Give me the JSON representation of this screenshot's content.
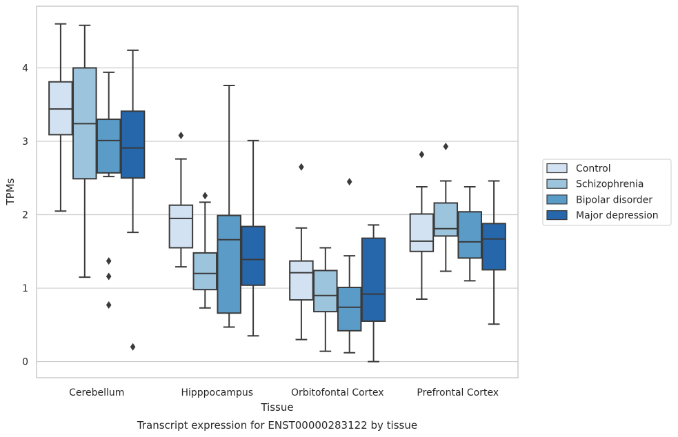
{
  "chart_data": {
    "type": "box",
    "title": "",
    "caption": "Transcript expression for ENST00000283122 by tissue",
    "xlabel": "Tissue",
    "ylabel": "TPMs",
    "ylim": [
      -0.22,
      4.84
    ],
    "yticks": [
      0,
      1,
      2,
      3,
      4
    ],
    "grid": "horizontal",
    "legend_position": "right",
    "categories": [
      "Cerebellum",
      "Hipppocampus",
      "Orbitofontal Cortex",
      "Prefrontal Cortex"
    ],
    "series": [
      {
        "name": "Control",
        "color": "#d2e2f2",
        "boxes": [
          {
            "whislo": 2.05,
            "q1": 3.09,
            "med": 3.44,
            "q3": 3.81,
            "whishi": 4.6,
            "fliers": []
          },
          {
            "whislo": 1.29,
            "q1": 1.55,
            "med": 1.95,
            "q3": 2.13,
            "whishi": 2.76,
            "fliers": [
              3.08
            ]
          },
          {
            "whislo": 0.3,
            "q1": 0.84,
            "med": 1.21,
            "q3": 1.37,
            "whishi": 1.82,
            "fliers": [
              2.65
            ]
          },
          {
            "whislo": 0.85,
            "q1": 1.5,
            "med": 1.64,
            "q3": 2.01,
            "whishi": 2.38,
            "fliers": [
              2.82
            ]
          }
        ]
      },
      {
        "name": "Schizophrenia",
        "color": "#9cc4dd",
        "boxes": [
          {
            "whislo": 1.15,
            "q1": 2.49,
            "med": 3.24,
            "q3": 4.0,
            "whishi": 4.58,
            "fliers": []
          },
          {
            "whislo": 0.73,
            "q1": 0.98,
            "med": 1.2,
            "q3": 1.48,
            "whishi": 2.17,
            "fliers": [
              2.26
            ]
          },
          {
            "whislo": 0.14,
            "q1": 0.68,
            "med": 0.9,
            "q3": 1.24,
            "whishi": 1.55,
            "fliers": []
          },
          {
            "whislo": 1.23,
            "q1": 1.71,
            "med": 1.81,
            "q3": 2.16,
            "whishi": 2.46,
            "fliers": [
              2.93
            ]
          }
        ]
      },
      {
        "name": "Bipolar disorder",
        "color": "#5a9bc8",
        "boxes": [
          {
            "whislo": 2.52,
            "q1": 2.57,
            "med": 3.01,
            "q3": 3.3,
            "whishi": 3.94,
            "fliers": [
              1.37,
              1.16,
              0.77
            ]
          },
          {
            "whislo": 0.47,
            "q1": 0.66,
            "med": 1.66,
            "q3": 1.99,
            "whishi": 3.76,
            "fliers": []
          },
          {
            "whislo": 0.12,
            "q1": 0.42,
            "med": 0.74,
            "q3": 1.01,
            "whishi": 1.44,
            "fliers": [
              2.45
            ]
          },
          {
            "whislo": 1.1,
            "q1": 1.41,
            "med": 1.63,
            "q3": 2.04,
            "whishi": 2.38,
            "fliers": []
          }
        ]
      },
      {
        "name": "Major depression",
        "color": "#2666ab",
        "boxes": [
          {
            "whislo": 1.76,
            "q1": 2.5,
            "med": 2.91,
            "q3": 3.41,
            "whishi": 4.24,
            "fliers": [
              0.2
            ]
          },
          {
            "whislo": 0.35,
            "q1": 1.04,
            "med": 1.39,
            "q3": 1.84,
            "whishi": 3.01,
            "fliers": []
          },
          {
            "whislo": 0.0,
            "q1": 0.55,
            "med": 0.92,
            "q3": 1.68,
            "whishi": 1.86,
            "fliers": []
          },
          {
            "whislo": 0.51,
            "q1": 1.25,
            "med": 1.67,
            "q3": 1.88,
            "whishi": 2.46,
            "fliers": []
          }
        ]
      }
    ]
  },
  "colors": {
    "frame": "#cccccc",
    "grid": "#cccccc",
    "lines": "#3a3a3a"
  }
}
